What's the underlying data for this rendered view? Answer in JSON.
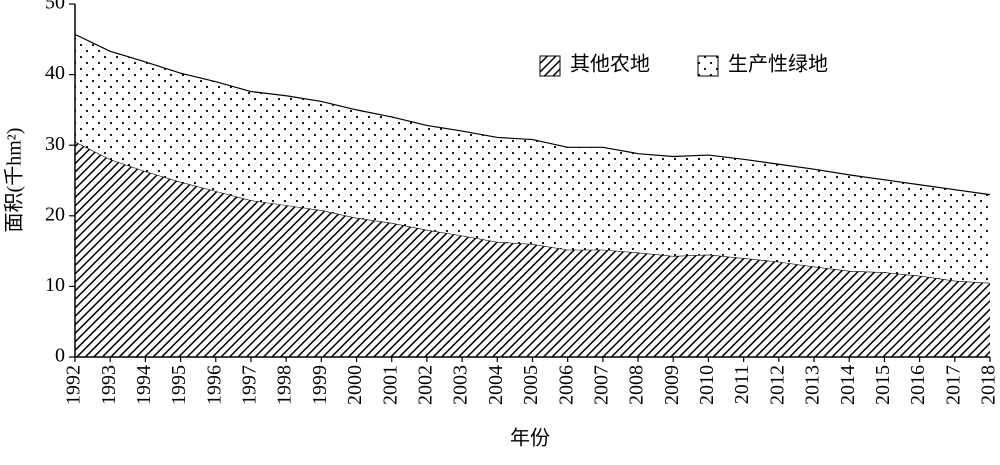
{
  "chart_data": {
    "type": "stacked-area",
    "x_label": "年份",
    "y_label": "面积(千hm²)",
    "categories": [
      "1992",
      "1993",
      "1994",
      "1995",
      "1996",
      "1997",
      "1998",
      "1999",
      "2000",
      "2001",
      "2002",
      "2003",
      "2004",
      "2005",
      "2006",
      "2007",
      "2008",
      "2009",
      "2010",
      "2011",
      "2012",
      "2013",
      "2014",
      "2015",
      "2016",
      "2017",
      "2018"
    ],
    "series": [
      {
        "name": "其他农地",
        "color": "#000000",
        "pattern": "hatch",
        "values": [
          30.5,
          28.0,
          26.3,
          24.8,
          23.5,
          22.2,
          21.5,
          20.8,
          19.7,
          19.0,
          18.0,
          17.2,
          16.3,
          16.0,
          15.2,
          15.2,
          14.8,
          14.3,
          14.5,
          14.0,
          13.5,
          12.8,
          12.2,
          12.0,
          11.5,
          10.8,
          10.5
        ]
      },
      {
        "name": "生产性绿地",
        "color": "#000000",
        "pattern": "dots",
        "values": [
          15.2,
          15.3,
          15.5,
          15.4,
          15.5,
          15.4,
          15.5,
          15.4,
          15.3,
          15.0,
          14.8,
          14.8,
          14.8,
          14.8,
          14.5,
          14.5,
          14.0,
          14.1,
          14.1,
          14.0,
          13.8,
          13.8,
          13.6,
          13.1,
          12.9,
          12.9,
          12.5
        ]
      }
    ],
    "ylim": [
      0,
      50
    ],
    "yticks": [
      0,
      10,
      20,
      30,
      40,
      50
    ],
    "legend": "top-right",
    "grid": false
  }
}
